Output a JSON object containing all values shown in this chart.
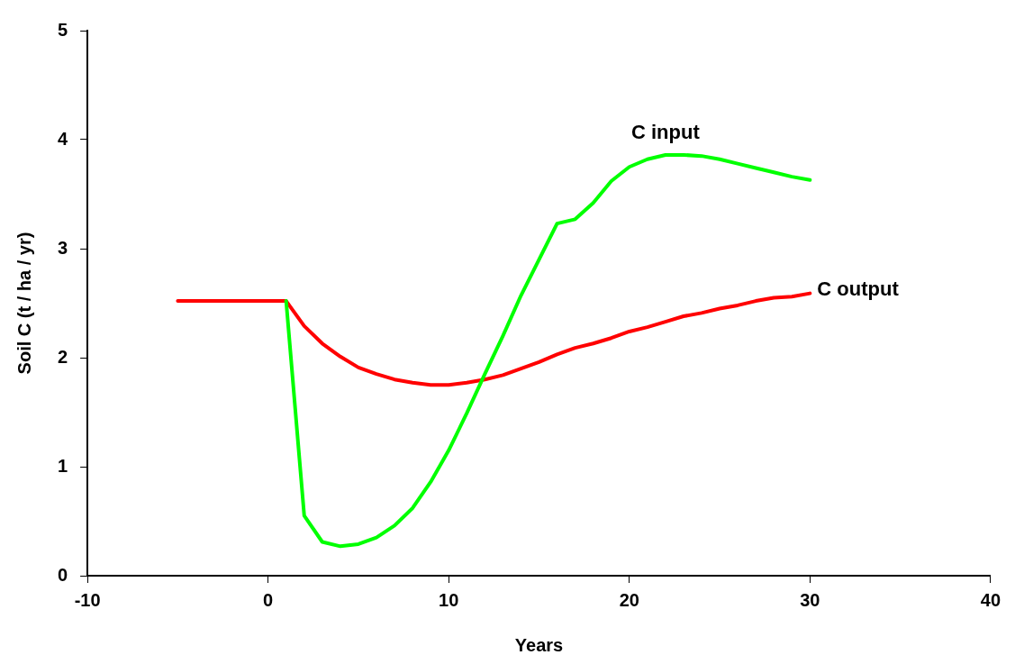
{
  "chart_data": {
    "type": "line",
    "xlabel": "Years",
    "ylabel": "Soil C (t / ha / yr)",
    "xlim": [
      -10,
      40
    ],
    "xticks": [
      -10,
      0,
      10,
      20,
      30,
      40
    ],
    "ylim": [
      0,
      5
    ],
    "yticks": [
      0,
      1,
      2,
      3,
      4,
      5
    ],
    "grid": false,
    "legend": false,
    "marker": "none",
    "line_style": "solid",
    "series": [
      {
        "name": "C input",
        "color": "#00ff00",
        "x": [
          1,
          2,
          3,
          4,
          5,
          6,
          7,
          8,
          9,
          10,
          11,
          12,
          13,
          14,
          15,
          16,
          17,
          18,
          19,
          20,
          21,
          22,
          23,
          24,
          25,
          26,
          27,
          28,
          29,
          30
        ],
        "values": [
          2.52,
          0.55,
          0.31,
          0.27,
          0.29,
          0.35,
          0.46,
          0.62,
          0.86,
          1.15,
          1.49,
          1.85,
          2.2,
          2.57,
          2.9,
          3.23,
          3.27,
          3.42,
          3.62,
          3.75,
          3.82,
          3.86,
          3.86,
          3.85,
          3.82,
          3.78,
          3.74,
          3.7,
          3.66,
          3.63
        ]
      },
      {
        "name": "C output",
        "color": "#ff0000",
        "x": [
          -5,
          1,
          2,
          3,
          4,
          5,
          6,
          7,
          8,
          9,
          10,
          11,
          12,
          13,
          14,
          15,
          16,
          17,
          18,
          19,
          20,
          21,
          22,
          23,
          24,
          25,
          26,
          27,
          28,
          29,
          30
        ],
        "values": [
          2.52,
          2.52,
          2.29,
          2.13,
          2.01,
          1.91,
          1.85,
          1.8,
          1.77,
          1.75,
          1.75,
          1.77,
          1.8,
          1.84,
          1.9,
          1.96,
          2.03,
          2.09,
          2.13,
          2.18,
          2.24,
          2.28,
          2.33,
          2.38,
          2.41,
          2.45,
          2.48,
          2.52,
          2.55,
          2.56,
          2.59
        ]
      }
    ]
  }
}
